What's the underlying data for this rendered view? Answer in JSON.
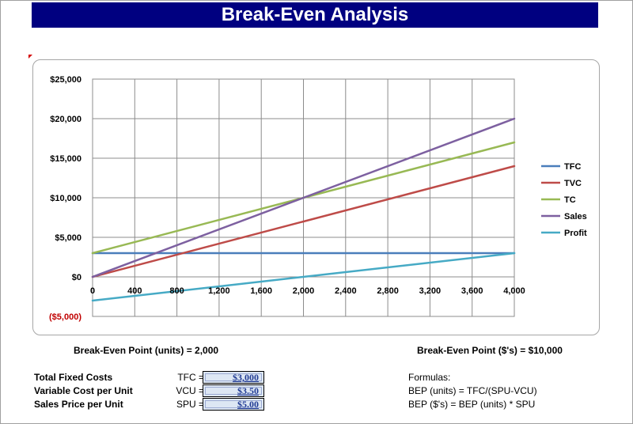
{
  "title": "Break-Even Analysis",
  "chart_data": {
    "type": "line",
    "x": [
      0,
      4000
    ],
    "x_ticks": [
      "0",
      "400",
      "800",
      "1,200",
      "1,600",
      "2,000",
      "2,400",
      "2,800",
      "3,200",
      "3,600",
      "4,000"
    ],
    "x_tick_values": [
      0,
      400,
      800,
      1200,
      1600,
      2000,
      2400,
      2800,
      3200,
      3600,
      4000
    ],
    "y_ticks": [
      "$25,000",
      "$20,000",
      "$15,000",
      "$10,000",
      "$5,000",
      "$0",
      "($5,000)"
    ],
    "y_tick_values": [
      25000,
      20000,
      15000,
      10000,
      5000,
      0,
      -5000
    ],
    "xlim": [
      0,
      4000
    ],
    "ylim": [
      -5000,
      25000
    ],
    "grid": true,
    "legend_position": "right",
    "series": [
      {
        "name": "TFC",
        "color": "#4a7ebb",
        "x": [
          0,
          4000
        ],
        "y": [
          3000,
          3000
        ]
      },
      {
        "name": "TVC",
        "color": "#be4b48",
        "x": [
          0,
          4000
        ],
        "y": [
          0,
          14000
        ]
      },
      {
        "name": "TC",
        "color": "#98b954",
        "x": [
          0,
          4000
        ],
        "y": [
          3000,
          17000
        ]
      },
      {
        "name": "Sales",
        "color": "#7d60a0",
        "x": [
          0,
          4000
        ],
        "y": [
          0,
          20000
        ]
      },
      {
        "name": "Profit",
        "color": "#46aac5",
        "x": [
          0,
          4000
        ],
        "y": [
          -3000,
          3000
        ]
      }
    ]
  },
  "break_even": {
    "units_label": "Break-Even Point (units) =",
    "units_value": "2,000",
    "dollars_label": "Break-Even Point ($'s) =",
    "dollars_value": "$10,000"
  },
  "inputs": [
    {
      "label": "Total Fixed Costs",
      "abbr": "TFC =",
      "value": "$3,000"
    },
    {
      "label": "Variable Cost per Unit",
      "abbr": "VCU =",
      "value": "$3.50"
    },
    {
      "label": "Sales Price per Unit",
      "abbr": "SPU =",
      "value": "$5.00"
    }
  ],
  "formulas": {
    "heading": "Formulas:",
    "lines": [
      "BEP (units) = TFC/(SPU-VCU)",
      "BEP ($'s) = BEP (units) * SPU"
    ]
  },
  "colors": {
    "title_bg": "#000080",
    "negative_label": "#c00000",
    "input_text": "#1f3a93"
  }
}
